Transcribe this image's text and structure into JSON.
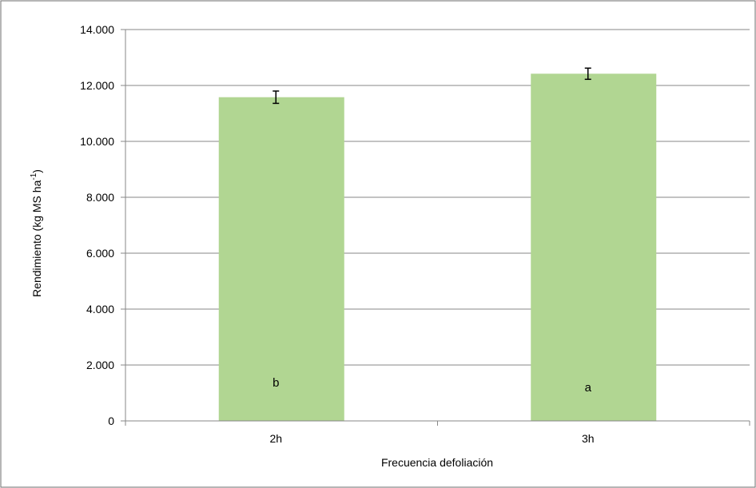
{
  "chart_data": {
    "type": "bar",
    "categories": [
      "2h",
      "3h"
    ],
    "values": [
      11580,
      12420
    ],
    "error": [
      220,
      200
    ],
    "significance_labels": [
      "b",
      "a"
    ],
    "xlabel": "Frecuencia defoliación",
    "ylabel": {
      "main": "Rendimiento (kg MS ha",
      "superscript": "-1",
      "close": ")"
    },
    "ylim": [
      0,
      14000
    ],
    "yticks": [
      0,
      2000,
      4000,
      6000,
      8000,
      10000,
      12000,
      14000
    ],
    "ytick_labels": [
      "0",
      "2.000",
      "4.000",
      "6.000",
      "8.000",
      "10.000",
      "12.000",
      "14.000"
    ],
    "grid": true,
    "legend": "none",
    "bar_color": "#b1d692",
    "grid_color": "#878787",
    "axis_color": "#878787"
  }
}
